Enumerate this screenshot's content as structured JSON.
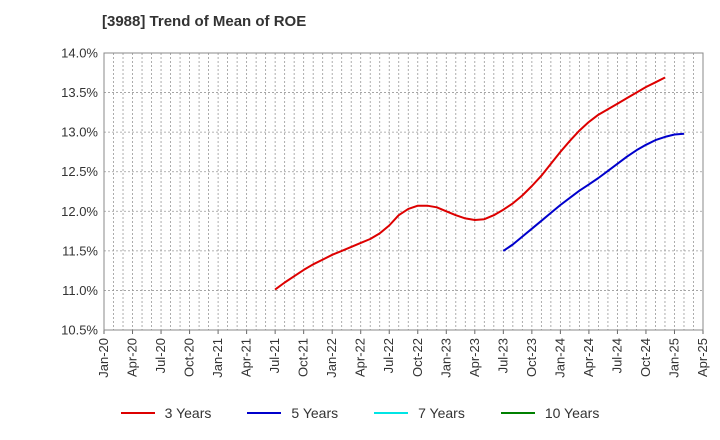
{
  "chart_data": {
    "type": "line",
    "title": "[3988]  Trend of Mean of ROE",
    "xlabel": "",
    "ylabel": "",
    "x_ticks": [
      "Jan-20",
      "Apr-20",
      "Jul-20",
      "Oct-20",
      "Jan-21",
      "Apr-21",
      "Jul-21",
      "Oct-21",
      "Jan-22",
      "Apr-22",
      "Jul-22",
      "Oct-22",
      "Jan-23",
      "Apr-23",
      "Jul-23",
      "Oct-23",
      "Jan-24",
      "Apr-24",
      "Jul-24",
      "Oct-24",
      "Jan-25",
      "Apr-25"
    ],
    "y_ticks": [
      "10.5%",
      "11.0%",
      "11.5%",
      "12.0%",
      "12.5%",
      "13.0%",
      "13.5%",
      "14.0%"
    ],
    "ylim": [
      10.5,
      14.0
    ],
    "grid": true,
    "legend_position": "bottom",
    "series": [
      {
        "name": "3 Years",
        "color": "#dd0000",
        "points": [
          [
            "Jul-21",
            11.01
          ],
          [
            "Aug-21",
            11.1
          ],
          [
            "Sep-21",
            11.18
          ],
          [
            "Oct-21",
            11.26
          ],
          [
            "Nov-21",
            11.33
          ],
          [
            "Dec-21",
            11.39
          ],
          [
            "Jan-22",
            11.45
          ],
          [
            "Feb-22",
            11.5
          ],
          [
            "Mar-22",
            11.55
          ],
          [
            "Apr-22",
            11.6
          ],
          [
            "May-22",
            11.65
          ],
          [
            "Jun-22",
            11.72
          ],
          [
            "Jul-22",
            11.82
          ],
          [
            "Aug-22",
            11.95
          ],
          [
            "Sep-22",
            12.03
          ],
          [
            "Oct-22",
            12.07
          ],
          [
            "Nov-22",
            12.07
          ],
          [
            "Dec-22",
            12.05
          ],
          [
            "Jan-23",
            12.0
          ],
          [
            "Feb-23",
            11.95
          ],
          [
            "Mar-23",
            11.91
          ],
          [
            "Apr-23",
            11.89
          ],
          [
            "May-23",
            11.9
          ],
          [
            "Jun-23",
            11.95
          ],
          [
            "Jul-23",
            12.02
          ],
          [
            "Aug-23",
            12.1
          ],
          [
            "Sep-23",
            12.2
          ],
          [
            "Oct-23",
            12.32
          ],
          [
            "Nov-23",
            12.45
          ],
          [
            "Dec-23",
            12.6
          ],
          [
            "Jan-24",
            12.75
          ],
          [
            "Feb-24",
            12.89
          ],
          [
            "Mar-24",
            13.02
          ],
          [
            "Apr-24",
            13.13
          ],
          [
            "May-24",
            13.22
          ],
          [
            "Jun-24",
            13.29
          ],
          [
            "Jul-24",
            13.36
          ],
          [
            "Aug-24",
            13.43
          ],
          [
            "Sep-24",
            13.5
          ],
          [
            "Oct-24",
            13.57
          ],
          [
            "Nov-24",
            13.63
          ],
          [
            "Dec-24",
            13.69
          ]
        ]
      },
      {
        "name": "5 Years",
        "color": "#0000cc",
        "points": [
          [
            "Jul-23",
            11.5
          ],
          [
            "Aug-23",
            11.58
          ],
          [
            "Sep-23",
            11.68
          ],
          [
            "Oct-23",
            11.78
          ],
          [
            "Nov-23",
            11.88
          ],
          [
            "Dec-23",
            11.98
          ],
          [
            "Jan-24",
            12.08
          ],
          [
            "Feb-24",
            12.17
          ],
          [
            "Mar-24",
            12.26
          ],
          [
            "Apr-24",
            12.34
          ],
          [
            "May-24",
            12.42
          ],
          [
            "Jun-24",
            12.51
          ],
          [
            "Jul-24",
            12.6
          ],
          [
            "Aug-24",
            12.69
          ],
          [
            "Sep-24",
            12.77
          ],
          [
            "Oct-24",
            12.84
          ],
          [
            "Nov-24",
            12.9
          ],
          [
            "Dec-24",
            12.94
          ],
          [
            "Jan-25",
            12.97
          ],
          [
            "Feb-25",
            12.98
          ]
        ]
      },
      {
        "name": "7 Years",
        "color": "#00e5e5",
        "points": []
      },
      {
        "name": "10 Years",
        "color": "#008000",
        "points": []
      }
    ]
  }
}
